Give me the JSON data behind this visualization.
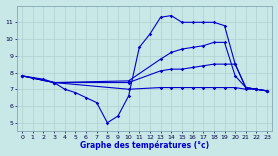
{
  "title": "",
  "xlabel": "Graphe des températures (°c)",
  "ylabel": "",
  "bg_color": "#c8e8e8",
  "grid_color": "#b0d0d0",
  "line_color": "#0000cc",
  "xlim": [
    -0.5,
    23.5
  ],
  "ylim": [
    4.5,
    12.0
  ],
  "xticks": [
    0,
    1,
    2,
    3,
    4,
    5,
    6,
    7,
    8,
    9,
    10,
    11,
    12,
    13,
    14,
    15,
    16,
    17,
    18,
    19,
    20,
    21,
    22,
    23
  ],
  "yticks": [
    5,
    6,
    7,
    8,
    9,
    10,
    11
  ],
  "series": [
    {
      "x": [
        0,
        1,
        2,
        3,
        4,
        5,
        6,
        7,
        8,
        9,
        10,
        11,
        12,
        13,
        14,
        15,
        16,
        17,
        18,
        19,
        20,
        21,
        22,
        23
      ],
      "y": [
        7.8,
        7.7,
        7.6,
        7.4,
        7.0,
        6.8,
        6.5,
        6.2,
        5.0,
        5.4,
        6.6,
        9.5,
        10.3,
        11.3,
        11.4,
        11.0,
        11.0,
        11.0,
        11.0,
        10.8,
        8.5,
        7.1,
        7.0,
        6.9
      ]
    },
    {
      "x": [
        0,
        3,
        10,
        13,
        14,
        15,
        16,
        17,
        18,
        19,
        20,
        21,
        22,
        23
      ],
      "y": [
        7.8,
        7.4,
        7.5,
        8.8,
        9.2,
        9.4,
        9.5,
        9.6,
        9.8,
        9.8,
        7.8,
        7.1,
        7.0,
        6.9
      ]
    },
    {
      "x": [
        0,
        3,
        10,
        13,
        14,
        15,
        16,
        17,
        18,
        19,
        20,
        21,
        22,
        23
      ],
      "y": [
        7.8,
        7.4,
        7.4,
        8.1,
        8.2,
        8.2,
        8.3,
        8.4,
        8.5,
        8.5,
        8.5,
        7.1,
        7.0,
        6.9
      ]
    },
    {
      "x": [
        0,
        3,
        10,
        13,
        14,
        15,
        16,
        17,
        18,
        19,
        20,
        21,
        22,
        23
      ],
      "y": [
        7.8,
        7.4,
        7.0,
        7.1,
        7.1,
        7.1,
        7.1,
        7.1,
        7.1,
        7.1,
        7.1,
        7.0,
        7.0,
        6.9
      ]
    }
  ]
}
